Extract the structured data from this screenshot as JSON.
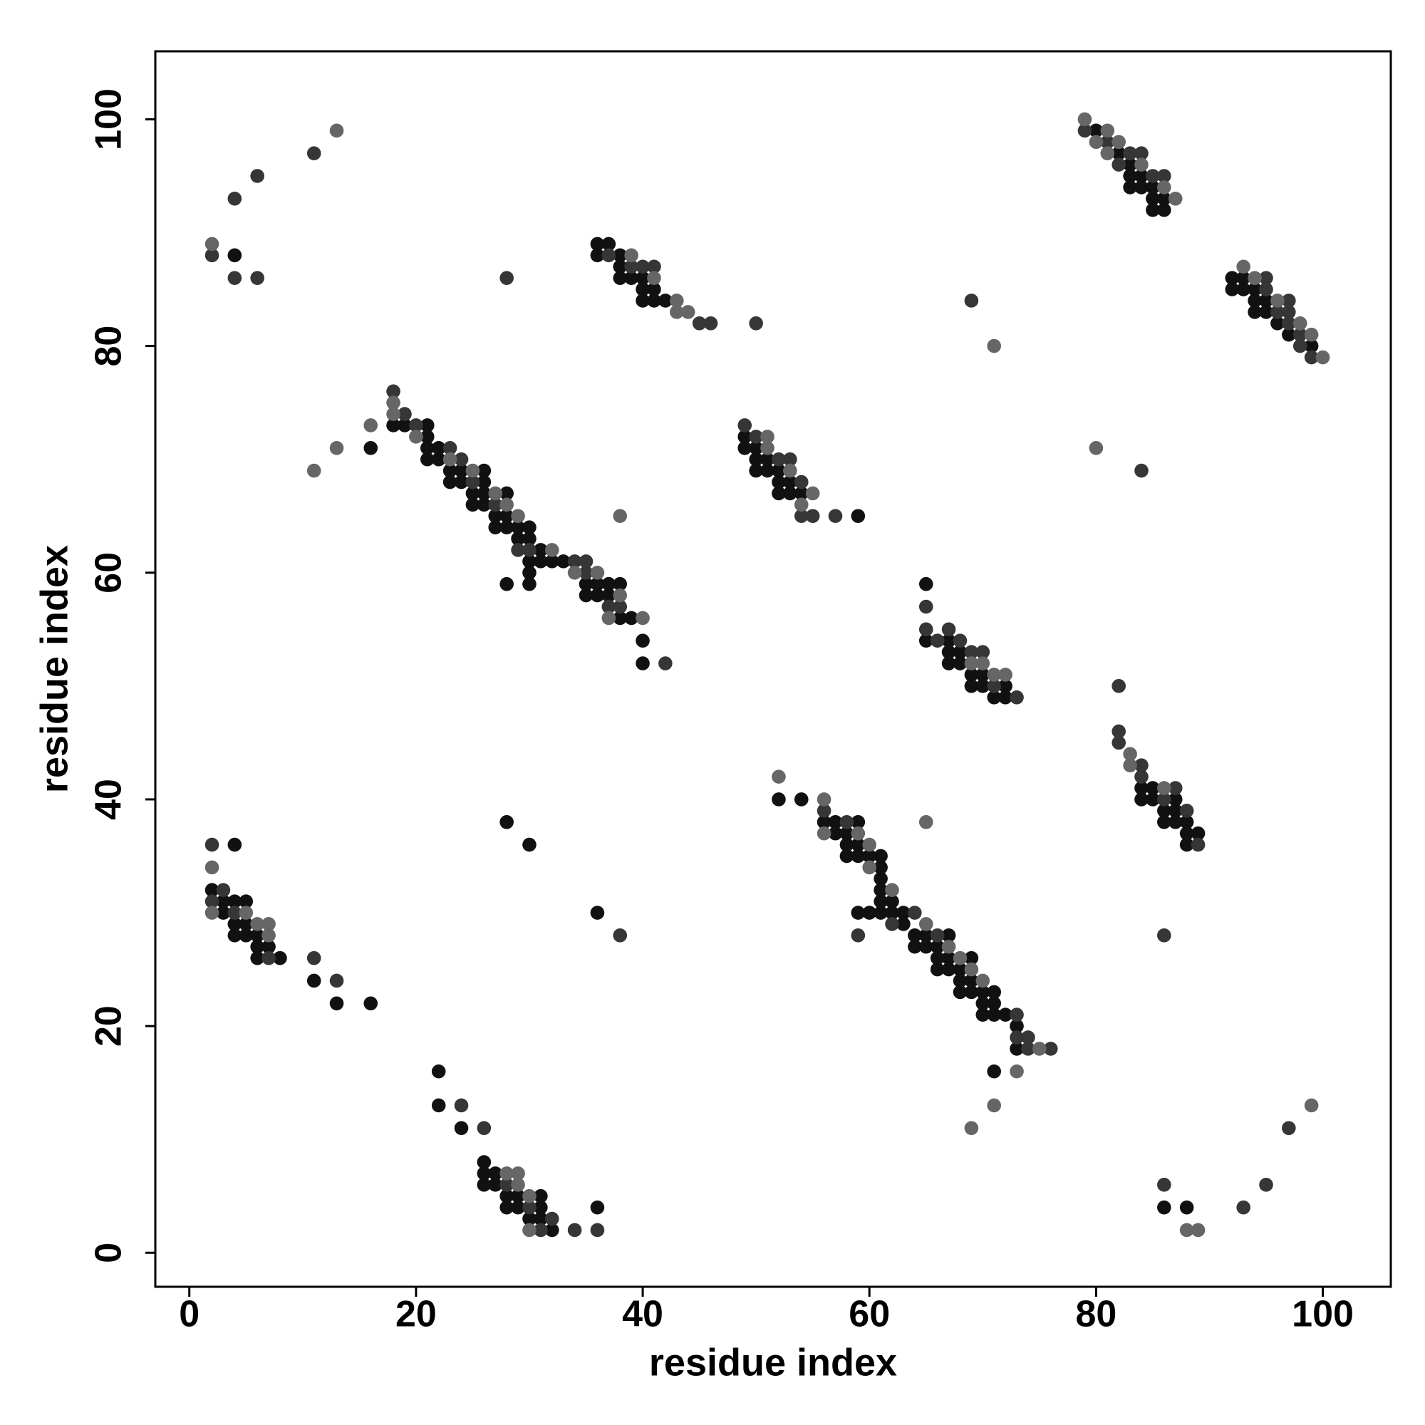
{
  "chart_data": {
    "type": "scatter",
    "xlabel": "residue index",
    "ylabel": "residue index",
    "xlim": [
      -3,
      106
    ],
    "ylim": [
      -3,
      106
    ],
    "xticks": [
      0,
      20,
      40,
      60,
      80,
      100
    ],
    "yticks": [
      0,
      20,
      40,
      60,
      80,
      100
    ],
    "grid": false,
    "series": [
      {
        "color": "#111111",
        "x": [
          4,
          80,
          82,
          83,
          83,
          83,
          84,
          84,
          85,
          85,
          85,
          86,
          86,
          36,
          36,
          37,
          38,
          38,
          38,
          39,
          40,
          40,
          40,
          41,
          41,
          42,
          92,
          92,
          93,
          93,
          94,
          94,
          94,
          95,
          95,
          96,
          97,
          99,
          18,
          19,
          21,
          21,
          21,
          21,
          22,
          22,
          23,
          23,
          24,
          24,
          25,
          25,
          26,
          26,
          26,
          26,
          27,
          27,
          28,
          28,
          28,
          29,
          29,
          30,
          30,
          30,
          30,
          30,
          31,
          31,
          32,
          33,
          35,
          35,
          36,
          36,
          37,
          37,
          38,
          38,
          39,
          40,
          40,
          28,
          16,
          49,
          49,
          50,
          50,
          50,
          51,
          51,
          52,
          52,
          52,
          53,
          53,
          54,
          59,
          65,
          65,
          67,
          67,
          67,
          68,
          68,
          69,
          69,
          70,
          70,
          71,
          72,
          72,
          84,
          84,
          85,
          85,
          86,
          86,
          87,
          87,
          87,
          88,
          88,
          88,
          89,
          52,
          54,
          56,
          57,
          57,
          58,
          58,
          58,
          59,
          59,
          59,
          60,
          61,
          61,
          61,
          61,
          61,
          61,
          60,
          59,
          62,
          62,
          63,
          63,
          64,
          64,
          65,
          65,
          66,
          66,
          66,
          67,
          67,
          67,
          68,
          68,
          68,
          69,
          69,
          69,
          70,
          70,
          70,
          71,
          71,
          71,
          72,
          73,
          73,
          71,
          4,
          2,
          3,
          3,
          4,
          4,
          4,
          5,
          5,
          5,
          6,
          6,
          6,
          7,
          8,
          11,
          13,
          16,
          28,
          30,
          36,
          22,
          22,
          24,
          26,
          26,
          26,
          27,
          27,
          28,
          28,
          29,
          29,
          30,
          31,
          31,
          31,
          32,
          36,
          86,
          88
        ],
        "values": [
          88,
          99,
          97,
          96,
          95,
          94,
          95,
          94,
          94,
          93,
          92,
          93,
          92,
          89,
          88,
          89,
          88,
          87,
          86,
          86,
          86,
          85,
          84,
          85,
          84,
          84,
          86,
          85,
          86,
          85,
          85,
          84,
          83,
          84,
          83,
          82,
          81,
          80,
          73,
          73,
          73,
          72,
          71,
          70,
          71,
          70,
          69,
          68,
          69,
          68,
          67,
          66,
          69,
          68,
          67,
          66,
          65,
          64,
          67,
          65,
          64,
          64,
          63,
          64,
          63,
          61,
          60,
          59,
          62,
          61,
          61,
          61,
          59,
          58,
          59,
          58,
          59,
          58,
          59,
          56,
          56,
          54,
          52,
          59,
          71,
          72,
          71,
          71,
          70,
          69,
          70,
          69,
          69,
          68,
          67,
          68,
          67,
          67,
          65,
          59,
          54,
          54,
          53,
          52,
          53,
          52,
          51,
          50,
          51,
          50,
          49,
          50,
          49,
          41,
          40,
          41,
          40,
          39,
          38,
          40,
          39,
          38,
          38,
          37,
          36,
          37,
          40,
          40,
          38,
          38,
          37,
          37,
          36,
          35,
          38,
          36,
          35,
          35,
          35,
          34,
          33,
          32,
          31,
          30,
          30,
          30,
          31,
          30,
          30,
          29,
          28,
          27,
          28,
          27,
          27,
          26,
          25,
          28,
          26,
          25,
          25,
          24,
          23,
          26,
          24,
          23,
          23,
          22,
          21,
          23,
          22,
          21,
          21,
          20,
          18,
          16,
          36,
          32,
          31,
          30,
          31,
          29,
          28,
          31,
          29,
          28,
          28,
          27,
          26,
          27,
          26,
          24,
          22,
          22,
          38,
          36,
          30,
          16,
          13,
          11,
          8,
          7,
          6,
          7,
          6,
          5,
          4,
          5,
          4,
          3,
          5,
          4,
          3,
          2,
          4,
          4,
          4
        ]
      },
      {
        "color": "#363636",
        "x": [
          2,
          4,
          6,
          4,
          6,
          11,
          79,
          81,
          82,
          83,
          84,
          85,
          86,
          37,
          39,
          40,
          41,
          45,
          46,
          28,
          50,
          69,
          95,
          95,
          96,
          97,
          97,
          97,
          98,
          98,
          99,
          84,
          18,
          19,
          20,
          23,
          24,
          25,
          27,
          29,
          30,
          34,
          35,
          35,
          37,
          38,
          42,
          49,
          50,
          52,
          53,
          54,
          54,
          55,
          57,
          65,
          65,
          66,
          67,
          68,
          69,
          70,
          71,
          73,
          82,
          82,
          82,
          84,
          84,
          86,
          87,
          88,
          89,
          86,
          56,
          58,
          59,
          62,
          64,
          66,
          73,
          73,
          74,
          74,
          76,
          2,
          2,
          3,
          4,
          7,
          11,
          13,
          38,
          24,
          26,
          28,
          30,
          31,
          32,
          34,
          36,
          86,
          93,
          95,
          97
        ],
        "values": [
          88,
          86,
          86,
          93,
          95,
          97,
          99,
          98,
          96,
          97,
          97,
          95,
          95,
          88,
          87,
          87,
          87,
          82,
          82,
          86,
          82,
          84,
          86,
          85,
          83,
          84,
          83,
          82,
          81,
          80,
          79,
          69,
          76,
          74,
          73,
          71,
          70,
          68,
          66,
          62,
          62,
          61,
          61,
          60,
          57,
          57,
          52,
          73,
          72,
          70,
          70,
          68,
          65,
          65,
          65,
          57,
          55,
          54,
          55,
          54,
          53,
          53,
          50,
          49,
          50,
          46,
          45,
          43,
          42,
          40,
          41,
          39,
          36,
          28,
          39,
          38,
          28,
          29,
          30,
          28,
          21,
          19,
          19,
          18,
          18,
          36,
          31,
          32,
          30,
          26,
          26,
          24,
          28,
          13,
          11,
          6,
          4,
          2,
          3,
          2,
          2,
          6,
          4,
          6,
          11
        ]
      },
      {
        "color": "#666666",
        "x": [
          2,
          13,
          79,
          80,
          81,
          81,
          82,
          84,
          86,
          87,
          39,
          41,
          43,
          43,
          44,
          71,
          93,
          94,
          96,
          98,
          99,
          100,
          80,
          18,
          18,
          20,
          23,
          25,
          27,
          28,
          29,
          32,
          34,
          36,
          37,
          38,
          40,
          16,
          13,
          11,
          38,
          51,
          51,
          53,
          54,
          55,
          69,
          70,
          71,
          72,
          83,
          83,
          86,
          52,
          56,
          56,
          59,
          60,
          60,
          62,
          65,
          67,
          68,
          69,
          70,
          75,
          65,
          73,
          71,
          69,
          2,
          2,
          5,
          6,
          7,
          7,
          28,
          29,
          29,
          30,
          30,
          88,
          89,
          99
        ],
        "values": [
          89,
          99,
          100,
          98,
          99,
          97,
          98,
          96,
          94,
          93,
          88,
          86,
          84,
          83,
          83,
          80,
          87,
          86,
          84,
          82,
          81,
          79,
          71,
          75,
          74,
          72,
          70,
          69,
          67,
          66,
          65,
          62,
          60,
          60,
          56,
          58,
          56,
          73,
          71,
          69,
          65,
          72,
          71,
          69,
          66,
          67,
          52,
          52,
          51,
          51,
          44,
          43,
          41,
          42,
          40,
          37,
          37,
          36,
          34,
          32,
          29,
          27,
          26,
          25,
          24,
          18,
          38,
          16,
          13,
          11,
          34,
          30,
          30,
          29,
          29,
          28,
          7,
          7,
          6,
          5,
          2,
          2,
          2,
          13
        ]
      }
    ]
  }
}
